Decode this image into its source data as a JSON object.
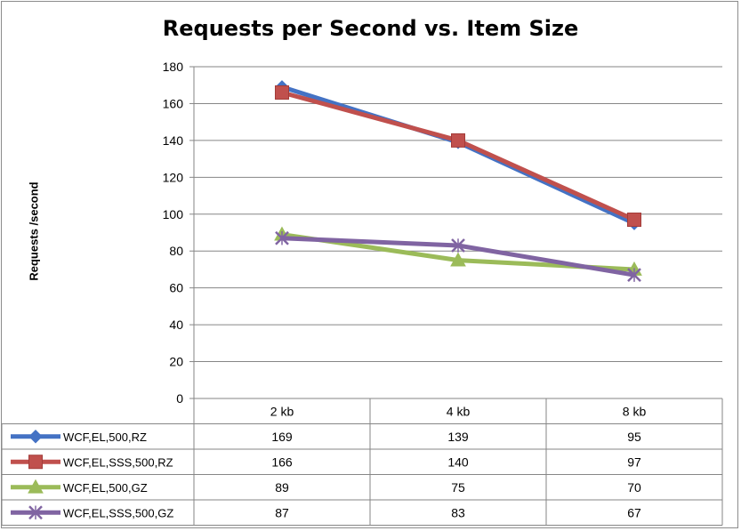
{
  "chart_data": {
    "type": "line",
    "title": "Requests per Second vs. Item Size",
    "ylabel": "Requests /second",
    "xlabel": "",
    "ylim": [
      0,
      180
    ],
    "yticks": [
      0,
      20,
      40,
      60,
      80,
      100,
      120,
      140,
      160,
      180
    ],
    "grid": true,
    "legend": "data-table",
    "categories": [
      "2 kb",
      "4 kb",
      "8 kb"
    ],
    "series": [
      {
        "name": "WCF,EL,500,RZ",
        "values": [
          169,
          139,
          95
        ],
        "color": "#4472c4",
        "marker": "diamond"
      },
      {
        "name": "WCF,EL,SSS,500,RZ",
        "values": [
          166,
          140,
          97
        ],
        "color": "#c0504d",
        "marker": "square"
      },
      {
        "name": "WCF,EL,500,GZ",
        "values": [
          89,
          75,
          70
        ],
        "color": "#9bbb59",
        "marker": "triangle"
      },
      {
        "name": "WCF,EL,SSS,500,GZ",
        "values": [
          87,
          83,
          67
        ],
        "color": "#8064a2",
        "marker": "x"
      }
    ]
  }
}
